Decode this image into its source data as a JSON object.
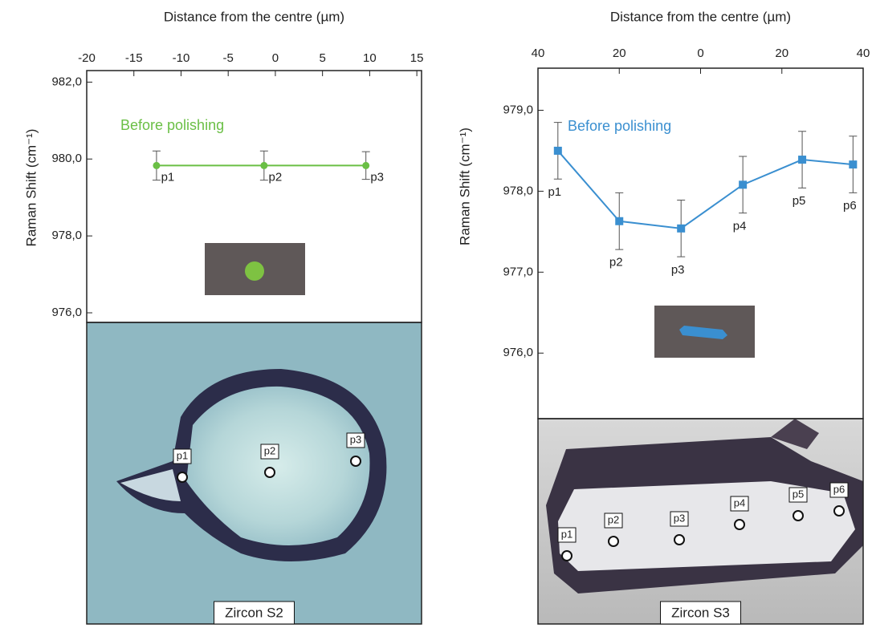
{
  "chart_data": [
    {
      "type": "line",
      "title": "Distance from the centre (µm)",
      "y_label": "Raman Shift (cm⁻¹)",
      "annotation": "Before polishing",
      "marker": "circle",
      "xlim": [
        -20,
        15.5
      ],
      "xticks": [
        -20,
        -15,
        -10,
        -5,
        0,
        5,
        10,
        15
      ],
      "ylim": [
        975.75,
        982.3
      ],
      "yticks": [
        {
          "value": 976,
          "label": "976,0"
        },
        {
          "value": 978,
          "label": "978,0"
        },
        {
          "value": 980,
          "label": "980,0"
        },
        {
          "value": 982,
          "label": "982,0"
        }
      ],
      "series": [
        {
          "color": "#6abf45",
          "x": [
            -12.6,
            -1.2,
            9.6
          ],
          "values": [
            979.83,
            979.83,
            979.83
          ],
          "errors": [
            0.38,
            0.38,
            0.36
          ],
          "point_labels": [
            "p1",
            "p2",
            "p3"
          ]
        }
      ],
      "image": {
        "caption": "Zircon S2",
        "markers": [
          "p1",
          "p2",
          "p3"
        ]
      }
    },
    {
      "type": "line",
      "title": "Distance from the centre (µm)",
      "y_label": "Raman Shift (cm⁻¹)",
      "annotation": "Before polishing",
      "marker": "square",
      "xlim": [
        -40,
        40
      ],
      "xticks": [
        {
          "value": -40,
          "label": "40"
        },
        {
          "value": -20,
          "label": "20"
        },
        0,
        20,
        40
      ],
      "ylim": [
        975.19,
        979.52
      ],
      "yticks": [
        {
          "value": 976,
          "label": "976,0"
        },
        {
          "value": 977,
          "label": "977,0"
        },
        {
          "value": 978,
          "label": "978,0"
        },
        {
          "value": 979,
          "label": "979,0"
        }
      ],
      "series": [
        {
          "color": "#3a8fd0",
          "x": [
            -35.1,
            -20.0,
            -4.8,
            10.4,
            25.0,
            37.5
          ],
          "values": [
            978.5,
            977.63,
            977.54,
            978.08,
            978.39,
            978.33
          ],
          "errors": [
            0.35,
            0.35,
            0.35,
            0.35,
            0.35,
            0.35
          ],
          "point_labels": [
            "p1",
            "p2",
            "p3",
            "p4",
            "p5",
            "p6"
          ]
        }
      ],
      "image": {
        "caption": "Zircon S3",
        "markers": [
          "p1",
          "p2",
          "p3",
          "p4",
          "p5",
          "p6"
        ]
      }
    }
  ]
}
